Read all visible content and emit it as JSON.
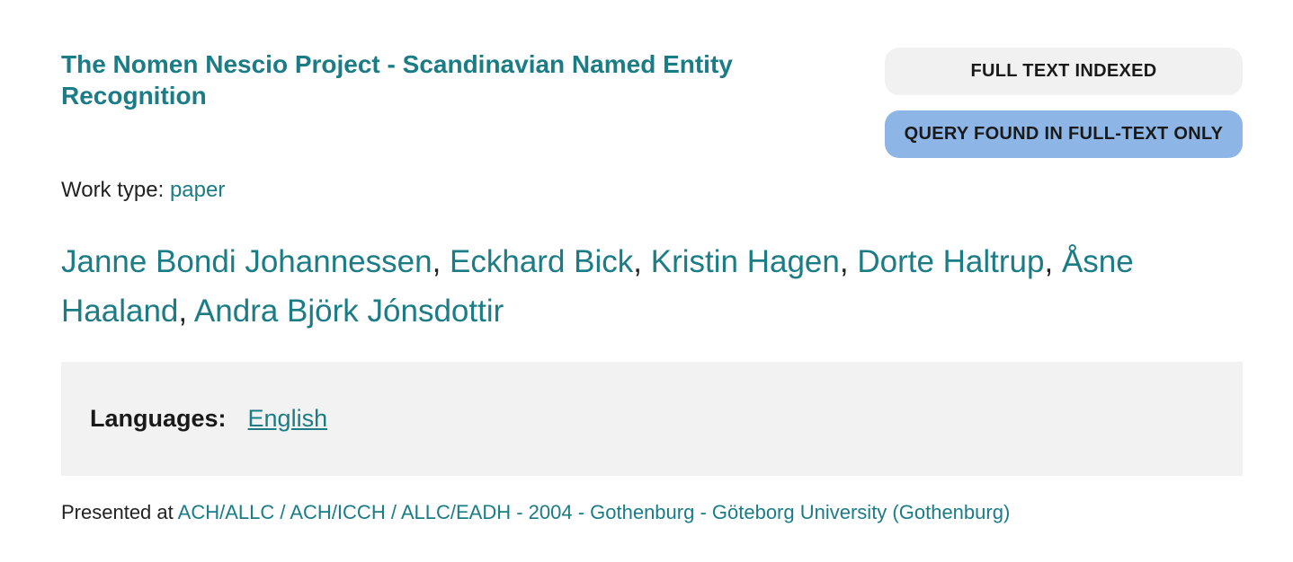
{
  "title": "The Nomen Nescio Project - Scandinavian Named Entity Recognition",
  "badges": {
    "full_text_indexed": "FULL TEXT INDEXED",
    "query_found": "QUERY FOUND IN FULL-TEXT ONLY"
  },
  "work_type": {
    "label": "Work type:",
    "value": "paper"
  },
  "authors": [
    "Janne Bondi Johannessen",
    "Eckhard Bick",
    "Kristin Hagen",
    "Dorte Haltrup",
    "Åsne Haaland",
    "Andra Björk Jónsdottir"
  ],
  "author_separator": ",",
  "languages": {
    "label": "Languages:",
    "value": "English"
  },
  "presented": {
    "label": "Presented at",
    "value": "ACH/ALLC / ACH/ICCH / ALLC/EADH - 2004 - Gothenburg - Göteborg University (Gothenburg)"
  },
  "colors": {
    "accent": "#1b7c85",
    "badge_neutral": "#f1f1f1",
    "badge_highlight": "#8db6e6",
    "panel_background": "#f2f2f2"
  }
}
